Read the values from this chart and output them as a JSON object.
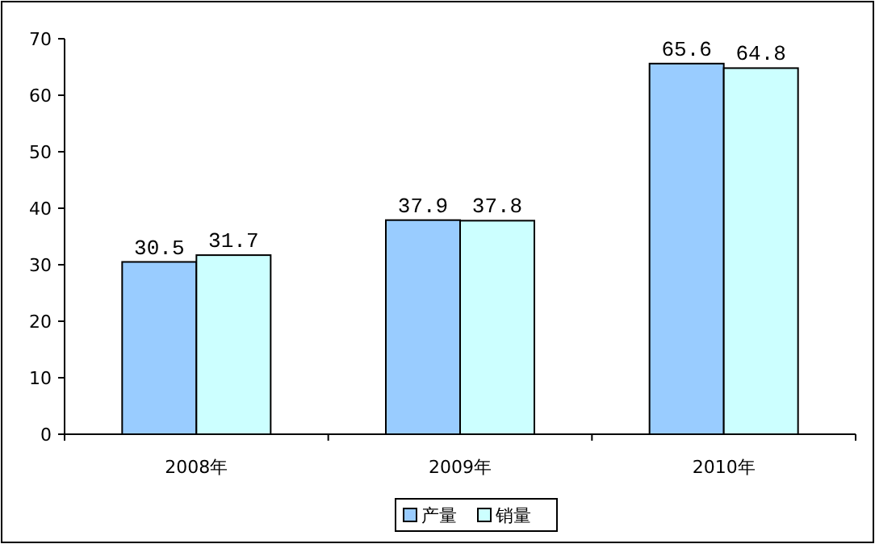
{
  "chart_data": {
    "type": "bar",
    "categories": [
      "2008年",
      "2009年",
      "2010年"
    ],
    "series": [
      {
        "name": "产量",
        "color": "#99ccff",
        "values": [
          30.5,
          37.9,
          65.6
        ]
      },
      {
        "name": "销量",
        "color": "#ccffff",
        "values": [
          31.7,
          37.8,
          64.8
        ]
      }
    ],
    "ylim": [
      0,
      70
    ],
    "yticks": [
      0,
      10,
      20,
      30,
      40,
      50,
      60,
      70
    ],
    "data_labels": true,
    "grid": false,
    "legend": "bottom"
  }
}
